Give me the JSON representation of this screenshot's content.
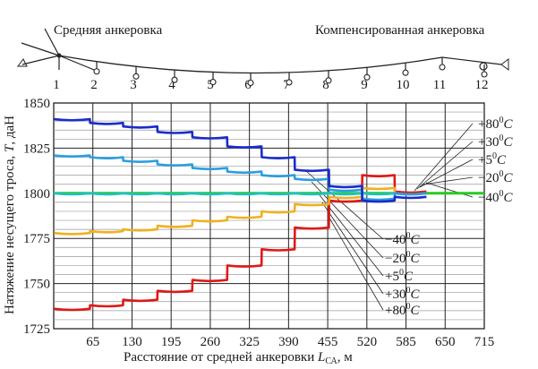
{
  "scheme": {
    "left_label": "Средняя анкеровка",
    "right_label": "Компенсированная анкеровка",
    "support_numbers": [
      "1",
      "2",
      "3",
      "4",
      "5",
      "6",
      "7",
      "8",
      "9",
      "10",
      "11",
      "12"
    ]
  },
  "chart_data": {
    "type": "line",
    "xlabel_main": "Расстояние от средней анкеровки ",
    "xlabel_symbol": "L",
    "xlabel_sub": "СА",
    "xlabel_unit": ", м",
    "ylabel_main": "Натяжение несущего троса, ",
    "ylabel_symbol": "T",
    "ylabel_unit": ", даН",
    "x_ticks": [
      "65",
      "130",
      "195",
      "260",
      "325",
      "390",
      "455",
      "520",
      "585",
      "650",
      "715"
    ],
    "y_ticks": [
      "1725",
      "1750",
      "1775",
      "1800",
      "1825",
      "1850"
    ],
    "xlim": [
      0,
      715
    ],
    "ylim": [
      1725,
      1850
    ],
    "grid": true,
    "nominal": {
      "value": 1800,
      "color": "#22cc22"
    },
    "spans": [
      [
        0,
        60
      ],
      [
        60,
        115
      ],
      [
        115,
        172
      ],
      [
        172,
        230
      ],
      [
        230,
        288
      ],
      [
        288,
        345
      ],
      [
        345,
        400
      ],
      [
        400,
        457
      ],
      [
        457,
        512
      ],
      [
        512,
        566
      ],
      [
        566,
        619
      ]
    ],
    "series": [
      {
        "name": "+80°C",
        "color": "#e01818",
        "values": [
          1736,
          1738,
          1741,
          1746,
          1752,
          1760,
          1769,
          1781,
          1796,
          1810,
          1801
        ]
      },
      {
        "name": "+30°C",
        "color": "#f0b020",
        "values": [
          1778,
          1779,
          1780,
          1782,
          1785,
          1787,
          1790,
          1794,
          1798,
          1803,
          1800
        ]
      },
      {
        "name": "+5°C",
        "color": "#20c0c8",
        "values": [
          1800,
          1800,
          1800,
          1800,
          1800,
          1800,
          1800,
          1800,
          1800,
          1800,
          1800
        ]
      },
      {
        "name": "−20°C",
        "color": "#2a9ee0",
        "values": [
          1821,
          1820,
          1818,
          1816,
          1814,
          1812,
          1810,
          1808,
          1802,
          1797,
          1800
        ]
      },
      {
        "name": "−40°C",
        "color": "#1a2ccc",
        "values": [
          1841,
          1839,
          1837,
          1834,
          1831,
          1826,
          1820,
          1813,
          1804,
          1796,
          1798
        ]
      }
    ],
    "legend_top": [
      {
        "base": "+80",
        "sup": "0",
        "unit": "C"
      },
      {
        "base": "+30",
        "sup": "0",
        "unit": "C"
      },
      {
        "base": "+5",
        "sup": "0",
        "unit": "C"
      },
      {
        "base": "−20",
        "sup": "0",
        "unit": "C"
      },
      {
        "base": "−40",
        "sup": "0",
        "unit": "C"
      }
    ],
    "legend_bottom": [
      {
        "base": "−40",
        "sup": "0",
        "unit": "C"
      },
      {
        "base": "−20",
        "sup": "0",
        "unit": "C"
      },
      {
        "base": "+5",
        "sup": "0",
        "unit": "C"
      },
      {
        "base": "+30",
        "sup": "0",
        "unit": "C"
      },
      {
        "base": "+80",
        "sup": "0",
        "unit": "C"
      }
    ]
  }
}
